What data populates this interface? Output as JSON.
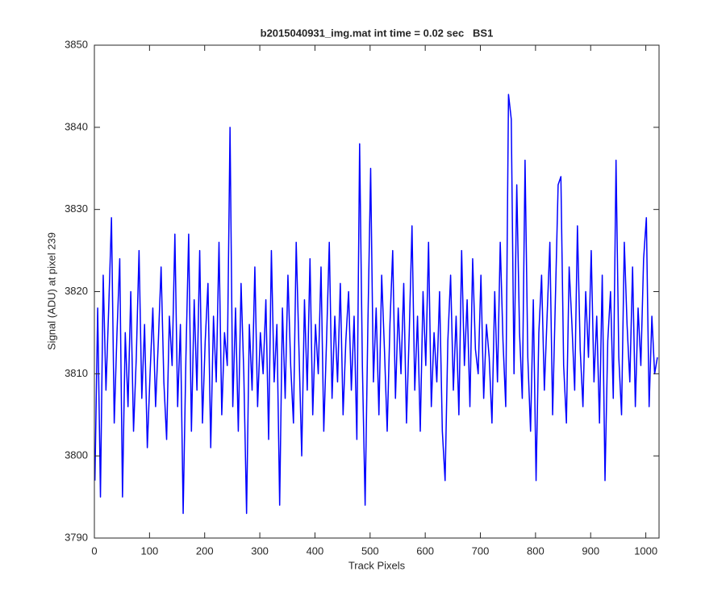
{
  "chart_data": {
    "type": "line",
    "title": "b2015040931_img.mat int time = 0.02 sec   BS1",
    "x_label": "Track Pixels",
    "y_label": "Signal (ADU) at pixel 239",
    "xlim": [
      0,
      1024
    ],
    "ylim": [
      3790,
      3850
    ],
    "xticks": [
      0,
      100,
      200,
      300,
      400,
      500,
      600,
      700,
      800,
      900,
      1000
    ],
    "yticks": [
      3790,
      3800,
      3810,
      3820,
      3830,
      3840,
      3850
    ],
    "series": [
      {
        "color": "#0000ff",
        "x": [
          1,
          6,
          11,
          16,
          21,
          26,
          31,
          36,
          41,
          46,
          51,
          56,
          61,
          66,
          71,
          76,
          81,
          86,
          91,
          96,
          101,
          106,
          111,
          116,
          121,
          126,
          131,
          136,
          141,
          146,
          151,
          156,
          161,
          166,
          171,
          176,
          181,
          186,
          191,
          196,
          201,
          206,
          211,
          216,
          221,
          226,
          231,
          236,
          241,
          246,
          251,
          256,
          261,
          266,
          271,
          276,
          281,
          286,
          291,
          296,
          301,
          306,
          311,
          316,
          321,
          326,
          331,
          336,
          341,
          346,
          351,
          356,
          361,
          366,
          371,
          376,
          381,
          386,
          391,
          396,
          401,
          406,
          411,
          416,
          421,
          426,
          431,
          436,
          441,
          446,
          451,
          456,
          461,
          466,
          471,
          476,
          481,
          486,
          491,
          496,
          501,
          506,
          511,
          516,
          521,
          526,
          531,
          536,
          541,
          546,
          551,
          556,
          561,
          566,
          571,
          576,
          581,
          586,
          591,
          596,
          601,
          606,
          611,
          616,
          621,
          626,
          631,
          636,
          641,
          646,
          651,
          656,
          661,
          666,
          671,
          676,
          681,
          686,
          691,
          696,
          701,
          706,
          711,
          716,
          721,
          726,
          731,
          736,
          741,
          746,
          751,
          756,
          761,
          766,
          771,
          776,
          781,
          786,
          791,
          796,
          801,
          806,
          811,
          816,
          821,
          826,
          831,
          836,
          841,
          846,
          851,
          856,
          861,
          866,
          871,
          876,
          881,
          886,
          891,
          896,
          901,
          906,
          911,
          916,
          921,
          926,
          931,
          936,
          941,
          946,
          951,
          956,
          961,
          966,
          971,
          976,
          981,
          986,
          991,
          996,
          1001,
          1006,
          1011,
          1016,
          1021
        ],
        "values": [
          3797,
          3818,
          3795,
          3822,
          3808,
          3818,
          3829,
          3804,
          3815,
          3824,
          3795,
          3815,
          3806,
          3820,
          3803,
          3812,
          3825,
          3807,
          3816,
          3801,
          3810,
          3818,
          3806,
          3814,
          3823,
          3809,
          3802,
          3817,
          3811,
          3827,
          3806,
          3816,
          3793,
          3812,
          3827,
          3803,
          3819,
          3808,
          3825,
          3804,
          3814,
          3821,
          3801,
          3817,
          3809,
          3826,
          3805,
          3815,
          3811,
          3840,
          3806,
          3818,
          3803,
          3821,
          3810,
          3793,
          3816,
          3808,
          3823,
          3806,
          3815,
          3810,
          3819,
          3802,
          3825,
          3809,
          3816,
          3794,
          3818,
          3807,
          3822,
          3811,
          3804,
          3826,
          3813,
          3800,
          3819,
          3808,
          3824,
          3805,
          3816,
          3810,
          3823,
          3803,
          3814,
          3826,
          3807,
          3817,
          3809,
          3821,
          3805,
          3814,
          3820,
          3808,
          3817,
          3802,
          3838,
          3811,
          3794,
          3816,
          3835,
          3809,
          3818,
          3805,
          3822,
          3813,
          3803,
          3816,
          3825,
          3807,
          3818,
          3810,
          3821,
          3804,
          3815,
          3828,
          3808,
          3817,
          3803,
          3820,
          3811,
          3826,
          3806,
          3815,
          3809,
          3820,
          3803,
          3797,
          3814,
          3822,
          3808,
          3817,
          3805,
          3825,
          3811,
          3819,
          3806,
          3824,
          3813,
          3810,
          3822,
          3807,
          3816,
          3812,
          3804,
          3820,
          3809,
          3826,
          3814,
          3806,
          3844,
          3841,
          3810,
          3833,
          3815,
          3807,
          3836,
          3812,
          3803,
          3819,
          3797,
          3815,
          3822,
          3808,
          3817,
          3826,
          3805,
          3819,
          3833,
          3834,
          3811,
          3804,
          3823,
          3816,
          3808,
          3828,
          3813,
          3806,
          3820,
          3812,
          3825,
          3809,
          3817,
          3804,
          3822,
          3797,
          3814,
          3820,
          3807,
          3836,
          3812,
          3805,
          3826,
          3816,
          3809,
          3823,
          3806,
          3818,
          3811,
          3824,
          3829,
          3806,
          3817,
          3810,
          3812
        ]
      }
    ]
  }
}
